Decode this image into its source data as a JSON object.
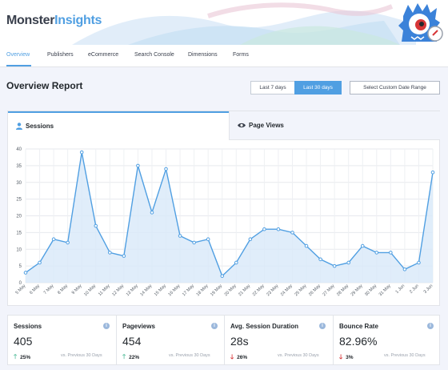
{
  "app": {
    "logo_part1": "Monster",
    "logo_part2": "Insights",
    "brand_color": "#509fe2"
  },
  "nav": {
    "items": [
      {
        "label": "Overview",
        "active": true
      },
      {
        "label": "Publishers",
        "active": false
      },
      {
        "label": "eCommerce",
        "active": false
      },
      {
        "label": "Search Console",
        "active": false
      },
      {
        "label": "Dimensions",
        "active": false
      },
      {
        "label": "Forms",
        "active": false
      }
    ]
  },
  "report": {
    "title": "Overview Report",
    "date_buttons": [
      {
        "label": "Last 7 days",
        "active": false
      },
      {
        "label": "Last 30 days",
        "active": true
      }
    ],
    "custom_range_label": "Select Custom Date Range"
  },
  "tabs": [
    {
      "label": "Sessions",
      "icon": "person-icon",
      "active": true
    },
    {
      "label": "Page Views",
      "icon": "eye-icon",
      "active": false
    }
  ],
  "chart_data": {
    "type": "area",
    "title": "",
    "xlabel": "",
    "ylabel": "",
    "ylim": [
      0,
      40
    ],
    "yticks": [
      0,
      5,
      10,
      15,
      20,
      25,
      30,
      35,
      40
    ],
    "grid": true,
    "categories": [
      "5 May",
      "6 May",
      "7 May",
      "8 May",
      "9 May",
      "10 May",
      "11 May",
      "12 May",
      "13 May",
      "14 May",
      "15 May",
      "16 May",
      "17 May",
      "18 May",
      "19 May",
      "20 May",
      "21 May",
      "22 May",
      "23 May",
      "24 May",
      "25 May",
      "26 May",
      "27 May",
      "28 May",
      "29 May",
      "30 May",
      "31 May",
      "1 Jun",
      "2 Jun",
      "3 Jun"
    ],
    "series": [
      {
        "values": [
          3,
          6,
          13,
          12,
          39,
          17,
          9,
          8,
          35,
          21,
          34,
          14,
          12,
          13,
          2,
          6,
          13,
          16,
          16,
          15,
          11,
          7,
          5,
          6,
          11,
          9,
          9,
          4,
          6,
          33
        ]
      }
    ],
    "line_color": "#509fe2",
    "fill_color": "#d8e8f9"
  },
  "stats": [
    {
      "label": "Sessions",
      "value": "405",
      "trend": "25%",
      "direction": "up",
      "compare": "vs. Previous 30 Days"
    },
    {
      "label": "Pageviews",
      "value": "454",
      "trend": "22%",
      "direction": "up",
      "compare": "vs. Previous 30 Days"
    },
    {
      "label": "Avg. Session Duration",
      "value": "28s",
      "trend": "26%",
      "direction": "down",
      "compare": "vs. Previous 30 Days"
    },
    {
      "label": "Bounce Rate",
      "value": "82.96%",
      "trend": "3%",
      "direction": "down",
      "compare": "vs. Previous 30 Days"
    }
  ],
  "colors": {
    "up": "#5cc0a0",
    "down": "#d73638"
  }
}
